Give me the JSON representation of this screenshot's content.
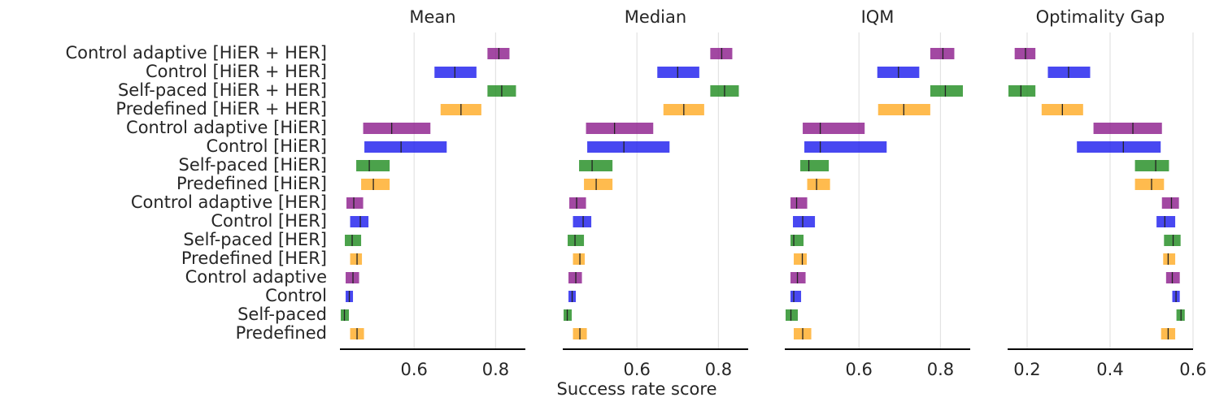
{
  "chart_data": {
    "type": "interval",
    "xlabel": "Success rate score",
    "methods": [
      "Control adaptive   [HiER + HER]",
      "Control   [HiER + HER]",
      "Self-paced   [HiER + HER]",
      "Predefined   [HiER + HER]",
      "Control adaptive  [HiER]",
      "Control   [HiER]",
      "Self-paced   [HiER]",
      "Predefined   [HiER]",
      "Control adaptive   [HER]",
      "Control   [HER]",
      "Self-paced   [HER]",
      "Predefined   [HER]",
      "Control adaptive",
      "Control",
      "Self-paced",
      "Predefined"
    ],
    "colors": [
      "#8b1a8b",
      "#1a1aee",
      "#1e8b1e",
      "#ffaa22",
      "#8b1a8b",
      "#1a1aee",
      "#1e8b1e",
      "#ffaa22",
      "#8b1a8b",
      "#1a1aee",
      "#1e8b1e",
      "#ffaa22",
      "#8b1a8b",
      "#1a1aee",
      "#1e8b1e",
      "#ffaa22"
    ],
    "panels": [
      {
        "title": "Mean",
        "xlim": [
          0.418,
          0.873
        ],
        "ticks": [
          0.6,
          0.8
        ],
        "tick_labels": [
          "0.6",
          "0.8"
        ],
        "intervals": [
          {
            "low": 0.78,
            "median": 0.808,
            "high": 0.834
          },
          {
            "low": 0.65,
            "median": 0.7,
            "high": 0.753
          },
          {
            "low": 0.78,
            "median": 0.815,
            "high": 0.85
          },
          {
            "low": 0.665,
            "median": 0.715,
            "high": 0.765
          },
          {
            "low": 0.475,
            "median": 0.545,
            "high": 0.64
          },
          {
            "low": 0.478,
            "median": 0.568,
            "high": 0.68
          },
          {
            "low": 0.458,
            "median": 0.49,
            "high": 0.54
          },
          {
            "low": 0.47,
            "median": 0.5,
            "high": 0.54
          },
          {
            "low": 0.434,
            "median": 0.452,
            "high": 0.475
          },
          {
            "low": 0.443,
            "median": 0.468,
            "high": 0.488
          },
          {
            "low": 0.43,
            "median": 0.448,
            "high": 0.47
          },
          {
            "low": 0.443,
            "median": 0.46,
            "high": 0.472
          },
          {
            "low": 0.432,
            "median": 0.45,
            "high": 0.465
          },
          {
            "low": 0.432,
            "median": 0.441,
            "high": 0.45
          },
          {
            "low": 0.42,
            "median": 0.429,
            "high": 0.44
          },
          {
            "low": 0.443,
            "median": 0.46,
            "high": 0.477
          }
        ]
      },
      {
        "title": "Median",
        "xlim": [
          0.418,
          0.873
        ],
        "ticks": [
          0.6,
          0.8
        ],
        "tick_labels": [
          "0.6",
          "0.8"
        ],
        "intervals": [
          {
            "low": 0.78,
            "median": 0.808,
            "high": 0.834
          },
          {
            "low": 0.65,
            "median": 0.7,
            "high": 0.753
          },
          {
            "low": 0.78,
            "median": 0.815,
            "high": 0.85
          },
          {
            "low": 0.665,
            "median": 0.715,
            "high": 0.765
          },
          {
            "low": 0.475,
            "median": 0.545,
            "high": 0.64
          },
          {
            "low": 0.478,
            "median": 0.568,
            "high": 0.68
          },
          {
            "low": 0.458,
            "median": 0.49,
            "high": 0.54
          },
          {
            "low": 0.47,
            "median": 0.5,
            "high": 0.54
          },
          {
            "low": 0.434,
            "median": 0.452,
            "high": 0.475
          },
          {
            "low": 0.443,
            "median": 0.468,
            "high": 0.488
          },
          {
            "low": 0.43,
            "median": 0.448,
            "high": 0.47
          },
          {
            "low": 0.443,
            "median": 0.46,
            "high": 0.472
          },
          {
            "low": 0.432,
            "median": 0.45,
            "high": 0.465
          },
          {
            "low": 0.432,
            "median": 0.441,
            "high": 0.45
          },
          {
            "low": 0.42,
            "median": 0.429,
            "high": 0.44
          },
          {
            "low": 0.443,
            "median": 0.46,
            "high": 0.477
          }
        ]
      },
      {
        "title": "IQM",
        "xlim": [
          0.418,
          0.873
        ],
        "ticks": [
          0.6,
          0.8
        ],
        "tick_labels": [
          "0.6",
          "0.8"
        ],
        "intervals": [
          {
            "low": 0.775,
            "median": 0.806,
            "high": 0.834
          },
          {
            "low": 0.645,
            "median": 0.697,
            "high": 0.748
          },
          {
            "low": 0.775,
            "median": 0.812,
            "high": 0.855
          },
          {
            "low": 0.647,
            "median": 0.71,
            "high": 0.775
          },
          {
            "low": 0.462,
            "median": 0.505,
            "high": 0.614
          },
          {
            "low": 0.466,
            "median": 0.505,
            "high": 0.668
          },
          {
            "low": 0.456,
            "median": 0.477,
            "high": 0.526
          },
          {
            "low": 0.473,
            "median": 0.496,
            "high": 0.529
          },
          {
            "low": 0.432,
            "median": 0.447,
            "high": 0.473
          },
          {
            "low": 0.438,
            "median": 0.462,
            "high": 0.492
          },
          {
            "low": 0.432,
            "median": 0.44,
            "high": 0.464
          },
          {
            "low": 0.44,
            "median": 0.461,
            "high": 0.472
          },
          {
            "low": 0.432,
            "median": 0.449,
            "high": 0.469
          },
          {
            "low": 0.432,
            "median": 0.44,
            "high": 0.458
          },
          {
            "low": 0.42,
            "median": 0.433,
            "high": 0.45
          },
          {
            "low": 0.44,
            "median": 0.462,
            "high": 0.483
          }
        ]
      },
      {
        "title": "Optimality Gap",
        "xlim": [
          0.153,
          0.6
        ],
        "ticks": [
          0.2,
          0.4,
          0.6
        ],
        "tick_labels": [
          "0.2",
          "0.4",
          "0.6"
        ],
        "intervals": [
          {
            "low": 0.17,
            "median": 0.196,
            "high": 0.22
          },
          {
            "low": 0.25,
            "median": 0.3,
            "high": 0.352
          },
          {
            "low": 0.155,
            "median": 0.185,
            "high": 0.22
          },
          {
            "low": 0.235,
            "median": 0.285,
            "high": 0.335
          },
          {
            "low": 0.36,
            "median": 0.455,
            "high": 0.525
          },
          {
            "low": 0.32,
            "median": 0.432,
            "high": 0.522
          },
          {
            "low": 0.46,
            "median": 0.51,
            "high": 0.542
          },
          {
            "low": 0.46,
            "median": 0.5,
            "high": 0.53
          },
          {
            "low": 0.525,
            "median": 0.548,
            "high": 0.566
          },
          {
            "low": 0.512,
            "median": 0.532,
            "high": 0.557
          },
          {
            "low": 0.53,
            "median": 0.552,
            "high": 0.57
          },
          {
            "low": 0.528,
            "median": 0.54,
            "high": 0.557
          },
          {
            "low": 0.535,
            "median": 0.55,
            "high": 0.568
          },
          {
            "low": 0.55,
            "median": 0.559,
            "high": 0.568
          },
          {
            "low": 0.56,
            "median": 0.571,
            "high": 0.58
          },
          {
            "low": 0.523,
            "median": 0.54,
            "high": 0.557
          }
        ]
      }
    ]
  }
}
